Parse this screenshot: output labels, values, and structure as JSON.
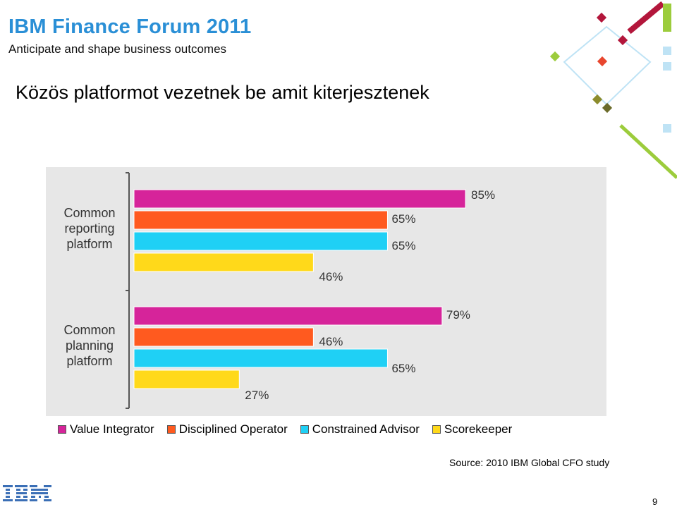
{
  "header": {
    "title": "IBM Finance Forum 2011",
    "subtitle": "Anticipate and shape business outcomes"
  },
  "slide": {
    "title": "Közös platformot vezetnek be amit kiterjesztenek",
    "source": "Source:  2010 IBM Global CFO study",
    "page_number": "9"
  },
  "chart_data": {
    "type": "bar",
    "orientation": "horizontal",
    "categories": [
      "Common reporting platform",
      "Common planning platform"
    ],
    "category_lines": [
      [
        "Common",
        "reporting",
        "platform"
      ],
      [
        "Common",
        "planning",
        "platform"
      ]
    ],
    "series": [
      {
        "name": "Value Integrator",
        "values": [
          85,
          79
        ],
        "color": "#d6249a"
      },
      {
        "name": "Disciplined Operator",
        "values": [
          65,
          46
        ],
        "color": "#ff5a1f"
      },
      {
        "name": "Constrained Advisor",
        "values": [
          65,
          65
        ],
        "color": "#1fd0f5"
      },
      {
        "name": "Scorekeeper",
        "values": [
          46,
          27
        ],
        "color": "#ffd91a"
      }
    ],
    "value_suffix": "%",
    "xlim": [
      0,
      100
    ],
    "grid": false,
    "legend_position": "bottom"
  },
  "colors": {
    "header_blue": "#2a8fd6",
    "chart_background": "#e7e7e7"
  },
  "icons": {
    "logo": "ibm-logo-icon",
    "decoration": "diamond-decoration-icon"
  }
}
